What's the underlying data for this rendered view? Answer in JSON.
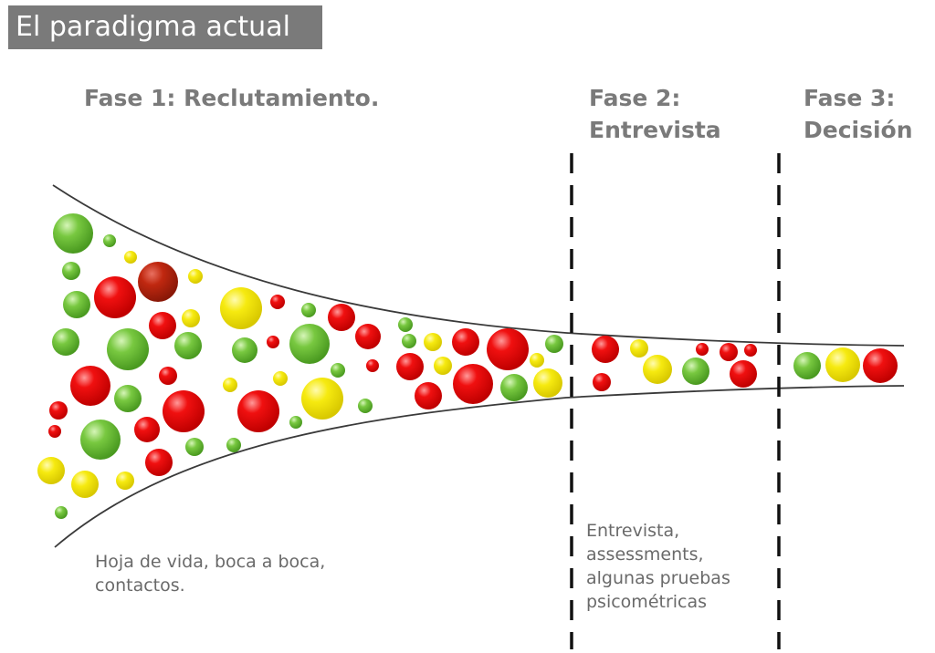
{
  "title": "El paradigma actual",
  "phases": [
    {
      "lines": [
        "Fase 1: Reclutamiento."
      ]
    },
    {
      "lines": [
        "Fase 2:",
        "Entrevista"
      ]
    },
    {
      "lines": [
        "Fase 3:",
        "Decisión"
      ]
    }
  ],
  "notes": [
    {
      "lines": [
        "Hoja de vida, boca a boca,",
        "contactos."
      ]
    },
    {
      "lines": [
        "Entrevista,",
        "assessments,",
        "algunas pruebas",
        "psicométricas"
      ]
    }
  ],
  "colors": {
    "red": "#e00000",
    "green": "#6cc030",
    "yellow": "#f0e000",
    "dark_red": "#b02010",
    "title_bg": "#7a7a7a",
    "phase_text": "#7a7a7a"
  }
}
